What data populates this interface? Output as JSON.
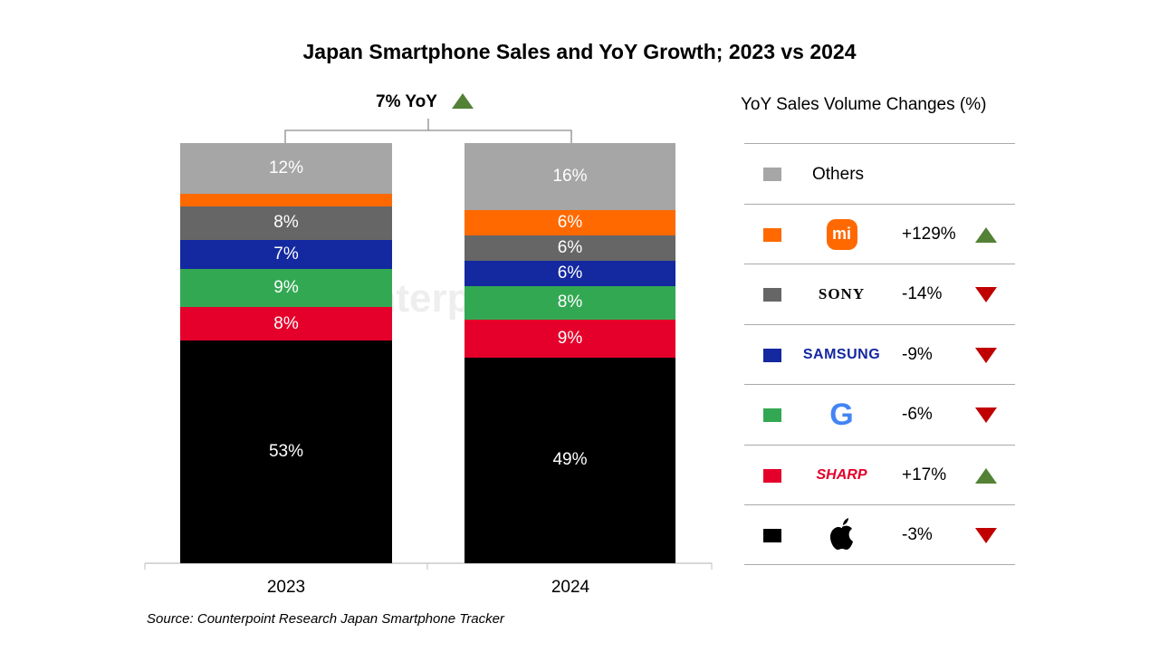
{
  "chart_data": {
    "type": "stacked-bar",
    "title": "Japan Smartphone Sales and YoY Growth; 2023 vs 2024",
    "categories": [
      "2023",
      "2024"
    ],
    "total_yoy_label": "7% YoY",
    "total_yoy_direction": "up",
    "ylim": [
      0,
      100
    ],
    "series": [
      {
        "brand": "Apple",
        "color": "#000000",
        "values": [
          53,
          49
        ],
        "labels": [
          "53%",
          "49%"
        ],
        "yoy": "-3%",
        "direction": "down"
      },
      {
        "brand": "SHARP",
        "color": "#e4002b",
        "values": [
          8,
          9
        ],
        "labels": [
          "8%",
          "9%"
        ],
        "yoy": "+17%",
        "direction": "up"
      },
      {
        "brand": "Google",
        "color": "#33a853",
        "values": [
          9,
          8
        ],
        "labels": [
          "9%",
          "8%"
        ],
        "yoy": "-6%",
        "direction": "down"
      },
      {
        "brand": "SAMSUNG",
        "color": "#1428a0",
        "values": [
          7,
          6
        ],
        "labels": [
          "7%",
          "6%"
        ],
        "yoy": "-9%",
        "direction": "down"
      },
      {
        "brand": "SONY",
        "color": "#666666",
        "values": [
          8,
          6
        ],
        "labels": [
          "8%",
          "6%"
        ],
        "yoy": "-14%",
        "direction": "down"
      },
      {
        "brand": "Xiaomi",
        "color": "#ff6900",
        "values": [
          3,
          6
        ],
        "labels": [
          "",
          "6%"
        ],
        "yoy": "+129%",
        "direction": "up"
      },
      {
        "brand": "Others",
        "color": "#a6a6a6",
        "values": [
          12,
          16
        ],
        "labels": [
          "12%",
          "16%"
        ],
        "yoy": "",
        "direction": ""
      }
    ],
    "legend_title": "YoY Sales Volume Changes (%)",
    "legend_placement": "right",
    "others_label": "Others",
    "logo_text": {
      "xiaomi": "mi",
      "sony": "SONY",
      "samsung": "SAMSUNG",
      "google": "G",
      "sharp": "SHARP"
    },
    "source": "Source: Counterpoint Research Japan Smartphone Tracker",
    "watermark": "Counterpoint"
  },
  "colors": {
    "up": "#538135",
    "down": "#c00000"
  }
}
